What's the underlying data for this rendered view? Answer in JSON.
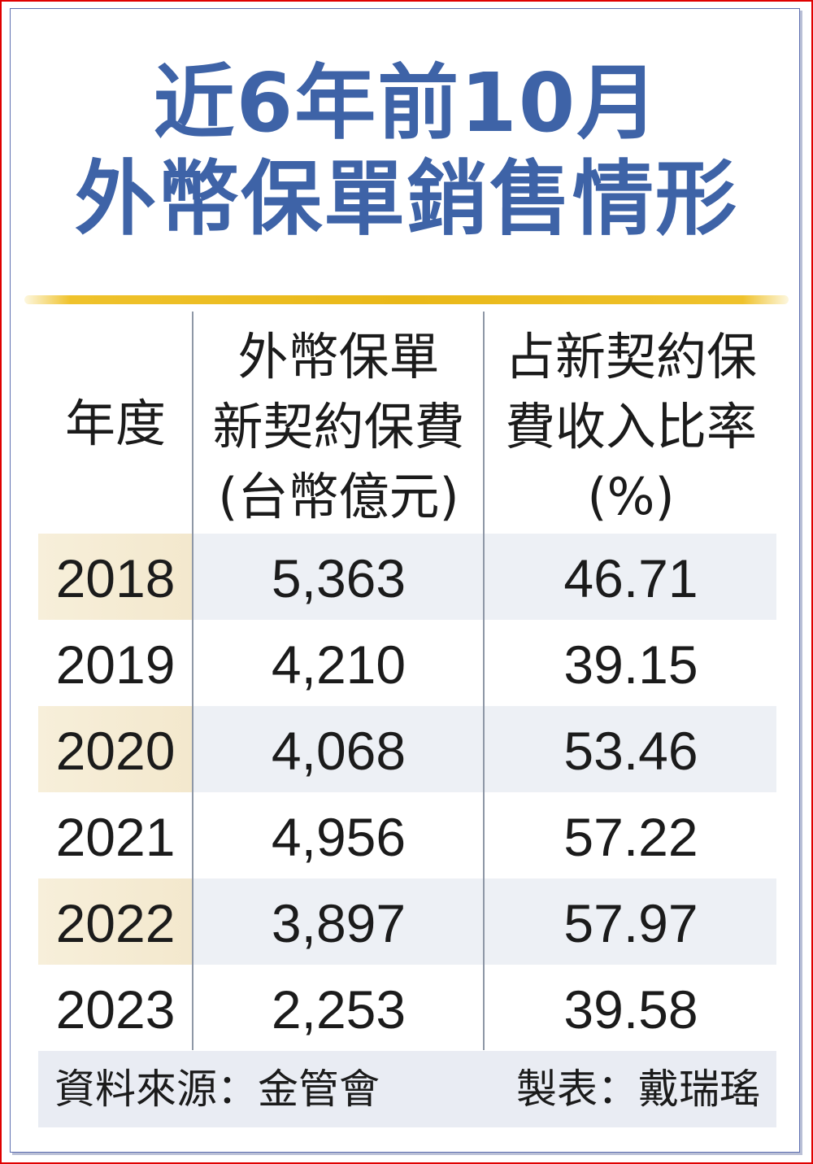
{
  "title_lines": [
    "近6年前10月",
    "外幣保單銷售情形"
  ],
  "chart_data": {
    "type": "table",
    "columns": [
      {
        "key": "year",
        "header_lines": [
          "年度"
        ]
      },
      {
        "key": "premium",
        "header_lines": [
          "外幣保單",
          "新契約保費",
          "(台幣億元)"
        ]
      },
      {
        "key": "ratio",
        "header_lines": [
          "占新契約保",
          "費收入比率",
          "(%)"
        ]
      }
    ],
    "rows": [
      {
        "year": "2018",
        "premium": "5,363",
        "ratio": "46.71"
      },
      {
        "year": "2019",
        "premium": "4,210",
        "ratio": "39.15"
      },
      {
        "year": "2020",
        "premium": "4,068",
        "ratio": "53.46"
      },
      {
        "year": "2021",
        "premium": "4,956",
        "ratio": "57.22"
      },
      {
        "year": "2022",
        "premium": "3,897",
        "ratio": "57.97"
      },
      {
        "year": "2023",
        "premium": "2,253",
        "ratio": "39.58"
      }
    ],
    "banded_rows": [
      "2018",
      "2020",
      "2022"
    ]
  },
  "footer": {
    "source": "資料來源：金管會",
    "maker": "製表：戴瑞瑤"
  },
  "colors": {
    "title": "#3e63a7",
    "gold_rule": "#e9b818",
    "band_year": "#f3e8cd",
    "band_body": "#edf0f5",
    "border": "#e00000"
  }
}
